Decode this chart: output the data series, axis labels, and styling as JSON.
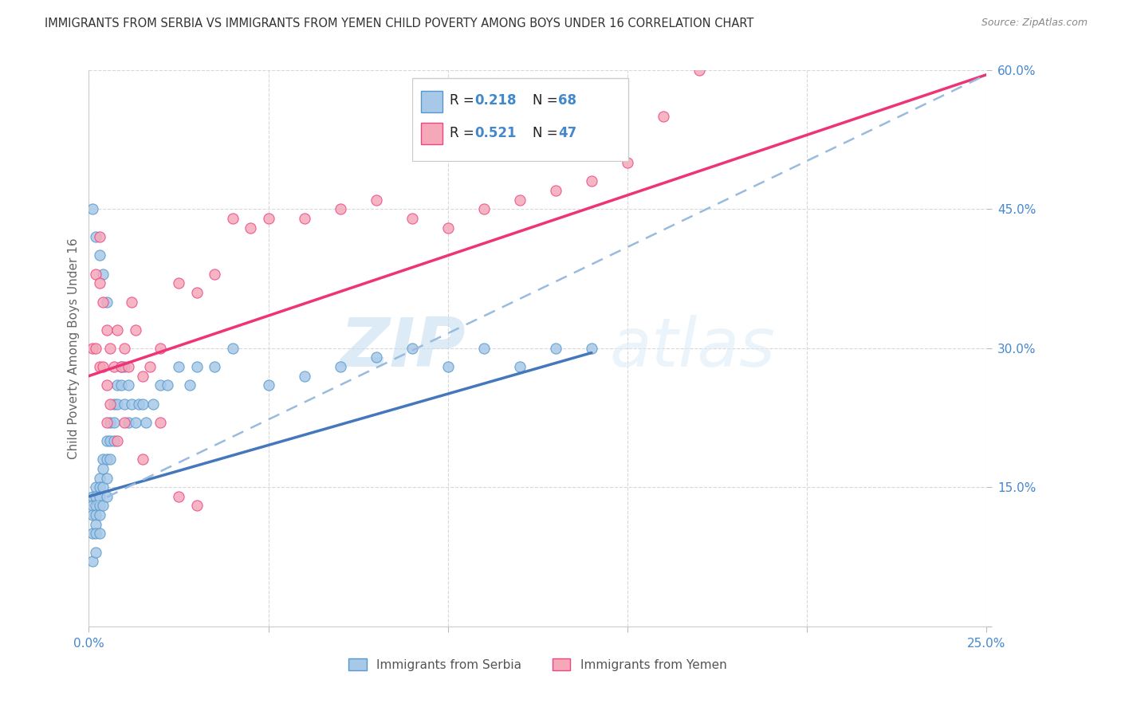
{
  "title": "IMMIGRANTS FROM SERBIA VS IMMIGRANTS FROM YEMEN CHILD POVERTY AMONG BOYS UNDER 16 CORRELATION CHART",
  "source": "Source: ZipAtlas.com",
  "ylabel": "Child Poverty Among Boys Under 16",
  "legend_label_serbia": "Immigrants from Serbia",
  "legend_label_yemen": "Immigrants from Yemen",
  "serbia_R": 0.218,
  "serbia_N": 68,
  "yemen_R": 0.521,
  "yemen_N": 47,
  "xlim": [
    0.0,
    0.25
  ],
  "ylim": [
    0.0,
    0.6
  ],
  "xticks": [
    0.0,
    0.05,
    0.1,
    0.15,
    0.2,
    0.25
  ],
  "yticks": [
    0.0,
    0.15,
    0.3,
    0.45,
    0.6
  ],
  "color_serbia": "#a8c8e8",
  "color_yemen": "#f4a8b8",
  "color_serbia_edge": "#5599cc",
  "color_yemen_edge": "#ee4488",
  "color_serbia_line": "#4477bb",
  "color_yemen_line": "#ee3377",
  "color_dashed": "#99bbdd",
  "color_text_blue": "#4488cc",
  "color_title": "#333333",
  "color_grid": "#d8d8d8",
  "serbia_x": [
    0.001,
    0.001,
    0.001,
    0.001,
    0.001,
    0.002,
    0.002,
    0.002,
    0.002,
    0.002,
    0.002,
    0.002,
    0.003,
    0.003,
    0.003,
    0.003,
    0.003,
    0.003,
    0.004,
    0.004,
    0.004,
    0.004,
    0.005,
    0.005,
    0.005,
    0.005,
    0.006,
    0.006,
    0.006,
    0.007,
    0.007,
    0.007,
    0.008,
    0.008,
    0.009,
    0.009,
    0.01,
    0.01,
    0.011,
    0.011,
    0.012,
    0.013,
    0.014,
    0.015,
    0.016,
    0.018,
    0.02,
    0.022,
    0.025,
    0.028,
    0.03,
    0.035,
    0.04,
    0.05,
    0.06,
    0.07,
    0.08,
    0.09,
    0.1,
    0.11,
    0.12,
    0.13,
    0.14,
    0.001,
    0.002,
    0.003,
    0.004,
    0.005
  ],
  "serbia_y": [
    0.14,
    0.13,
    0.12,
    0.1,
    0.07,
    0.15,
    0.14,
    0.13,
    0.12,
    0.11,
    0.1,
    0.08,
    0.16,
    0.15,
    0.14,
    0.13,
    0.12,
    0.1,
    0.18,
    0.17,
    0.15,
    0.13,
    0.2,
    0.18,
    0.16,
    0.14,
    0.22,
    0.2,
    0.18,
    0.24,
    0.22,
    0.2,
    0.26,
    0.24,
    0.28,
    0.26,
    0.28,
    0.24,
    0.26,
    0.22,
    0.24,
    0.22,
    0.24,
    0.24,
    0.22,
    0.24,
    0.26,
    0.26,
    0.28,
    0.26,
    0.28,
    0.28,
    0.3,
    0.26,
    0.27,
    0.28,
    0.29,
    0.3,
    0.28,
    0.3,
    0.28,
    0.3,
    0.3,
    0.45,
    0.42,
    0.4,
    0.38,
    0.35
  ],
  "yemen_x": [
    0.001,
    0.002,
    0.002,
    0.003,
    0.003,
    0.003,
    0.004,
    0.004,
    0.005,
    0.005,
    0.006,
    0.006,
    0.007,
    0.008,
    0.009,
    0.01,
    0.011,
    0.012,
    0.013,
    0.015,
    0.017,
    0.02,
    0.025,
    0.03,
    0.035,
    0.04,
    0.045,
    0.05,
    0.06,
    0.07,
    0.08,
    0.09,
    0.1,
    0.11,
    0.12,
    0.13,
    0.14,
    0.15,
    0.16,
    0.17,
    0.005,
    0.008,
    0.01,
    0.015,
    0.02,
    0.025,
    0.03
  ],
  "yemen_y": [
    0.3,
    0.38,
    0.3,
    0.42,
    0.37,
    0.28,
    0.35,
    0.28,
    0.32,
    0.26,
    0.3,
    0.24,
    0.28,
    0.32,
    0.28,
    0.3,
    0.28,
    0.35,
    0.32,
    0.27,
    0.28,
    0.3,
    0.37,
    0.36,
    0.38,
    0.44,
    0.43,
    0.44,
    0.44,
    0.45,
    0.46,
    0.44,
    0.43,
    0.45,
    0.46,
    0.47,
    0.48,
    0.5,
    0.55,
    0.6,
    0.22,
    0.2,
    0.22,
    0.18,
    0.22,
    0.14,
    0.13
  ],
  "serbia_line_x0": 0.0,
  "serbia_line_y0": 0.14,
  "serbia_line_x1": 0.14,
  "serbia_line_y1": 0.295,
  "yemen_line_x0": 0.0,
  "yemen_line_y0": 0.27,
  "yemen_line_x1": 0.25,
  "yemen_line_y1": 0.595,
  "dashed_line_x0": 0.0,
  "dashed_line_y0": 0.13,
  "dashed_line_x1": 0.25,
  "dashed_line_y1": 0.595
}
